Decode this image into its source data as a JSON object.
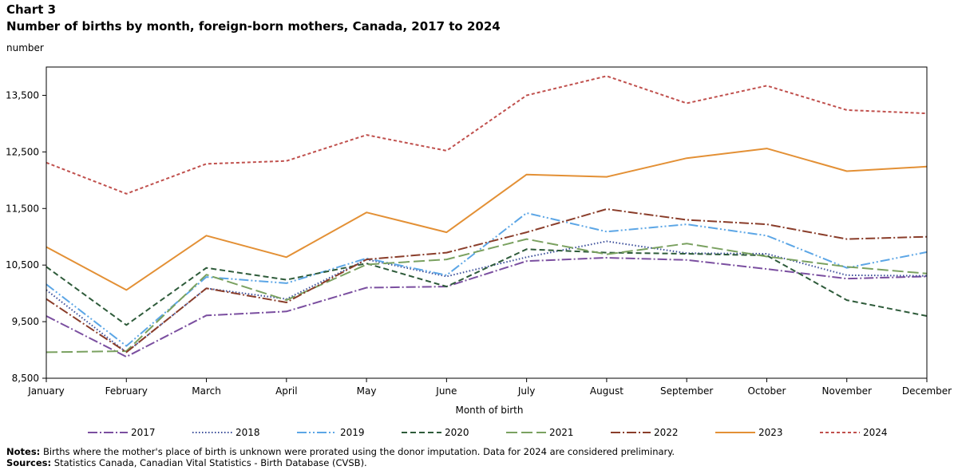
{
  "header": {
    "chart_number": "Chart 3",
    "title": "Number of births by month, foreign-born mothers, Canada, 2017 to 2024"
  },
  "footer": {
    "notes_label": "Notes:",
    "notes_text": "Births where the mother's place of birth is unknown were prorated using the donor imputation. Data for 2024 are considered preliminary.",
    "sources_label": "Sources:",
    "sources_text": "Statistics Canada, Canadian Vital Statistics - Birth Database (CVSB)."
  },
  "chart_data": {
    "type": "line",
    "title": "Number of births by month, foreign-born mothers, Canada, 2017 to 2024",
    "ylabel": "number",
    "xlabel": "Month of birth",
    "ylim": [
      8500,
      14000
    ],
    "yticks": [
      8500,
      9500,
      10500,
      11500,
      12500,
      13500
    ],
    "ytick_labels": [
      "8,500",
      "9,500",
      "10,500",
      "11,500",
      "12,500",
      "13,500"
    ],
    "categories": [
      "January",
      "February",
      "March",
      "April",
      "May",
      "June",
      "July",
      "August",
      "September",
      "October",
      "November",
      "December"
    ],
    "grid": false,
    "legend_position": "bottom",
    "series": [
      {
        "name": "2017",
        "color": "#7b4fa0",
        "dash": "12 3 2 3",
        "values": [
          9600,
          8880,
          9610,
          9680,
          10100,
          10120,
          10570,
          10630,
          10590,
          10430,
          10260,
          10300
        ]
      },
      {
        "name": "2018",
        "color": "#3b4e9a",
        "dash": "1.5 2.5",
        "values": [
          10060,
          8960,
          10090,
          9900,
          10600,
          10300,
          10640,
          10920,
          10710,
          10700,
          10320,
          10310
        ]
      },
      {
        "name": "2019",
        "color": "#5ca6e6",
        "dash": "12 3 2 3 2 3",
        "values": [
          10160,
          9070,
          10290,
          10180,
          10620,
          10320,
          11420,
          11090,
          11220,
          11020,
          10450,
          10730
        ]
      },
      {
        "name": "2020",
        "color": "#2e5b3a",
        "dash": "7 4",
        "values": [
          10470,
          9440,
          10450,
          10240,
          10530,
          10120,
          10780,
          10720,
          10700,
          10670,
          9880,
          9600
        ]
      },
      {
        "name": "2021",
        "color": "#7aa160",
        "dash": "14 5",
        "values": [
          8960,
          8980,
          10330,
          9880,
          10510,
          10600,
          10960,
          10690,
          10880,
          10650,
          10470,
          10350
        ]
      },
      {
        "name": "2022",
        "color": "#8a3d2a",
        "dash": "12 3 2 3",
        "values": [
          9900,
          8960,
          10090,
          9840,
          10600,
          10720,
          11080,
          11490,
          11300,
          11220,
          10960,
          11000
        ]
      },
      {
        "name": "2023",
        "color": "#e39035",
        "dash": "none",
        "values": [
          10820,
          10060,
          11020,
          10640,
          11430,
          11080,
          12100,
          12060,
          12390,
          12560,
          12160,
          12240
        ]
      },
      {
        "name": "2024",
        "color": "#c0504d",
        "dash": "4 3",
        "values": [
          12310,
          11760,
          12290,
          12340,
          12800,
          12520,
          13500,
          13840,
          13360,
          13670,
          13240,
          13180
        ]
      }
    ]
  }
}
